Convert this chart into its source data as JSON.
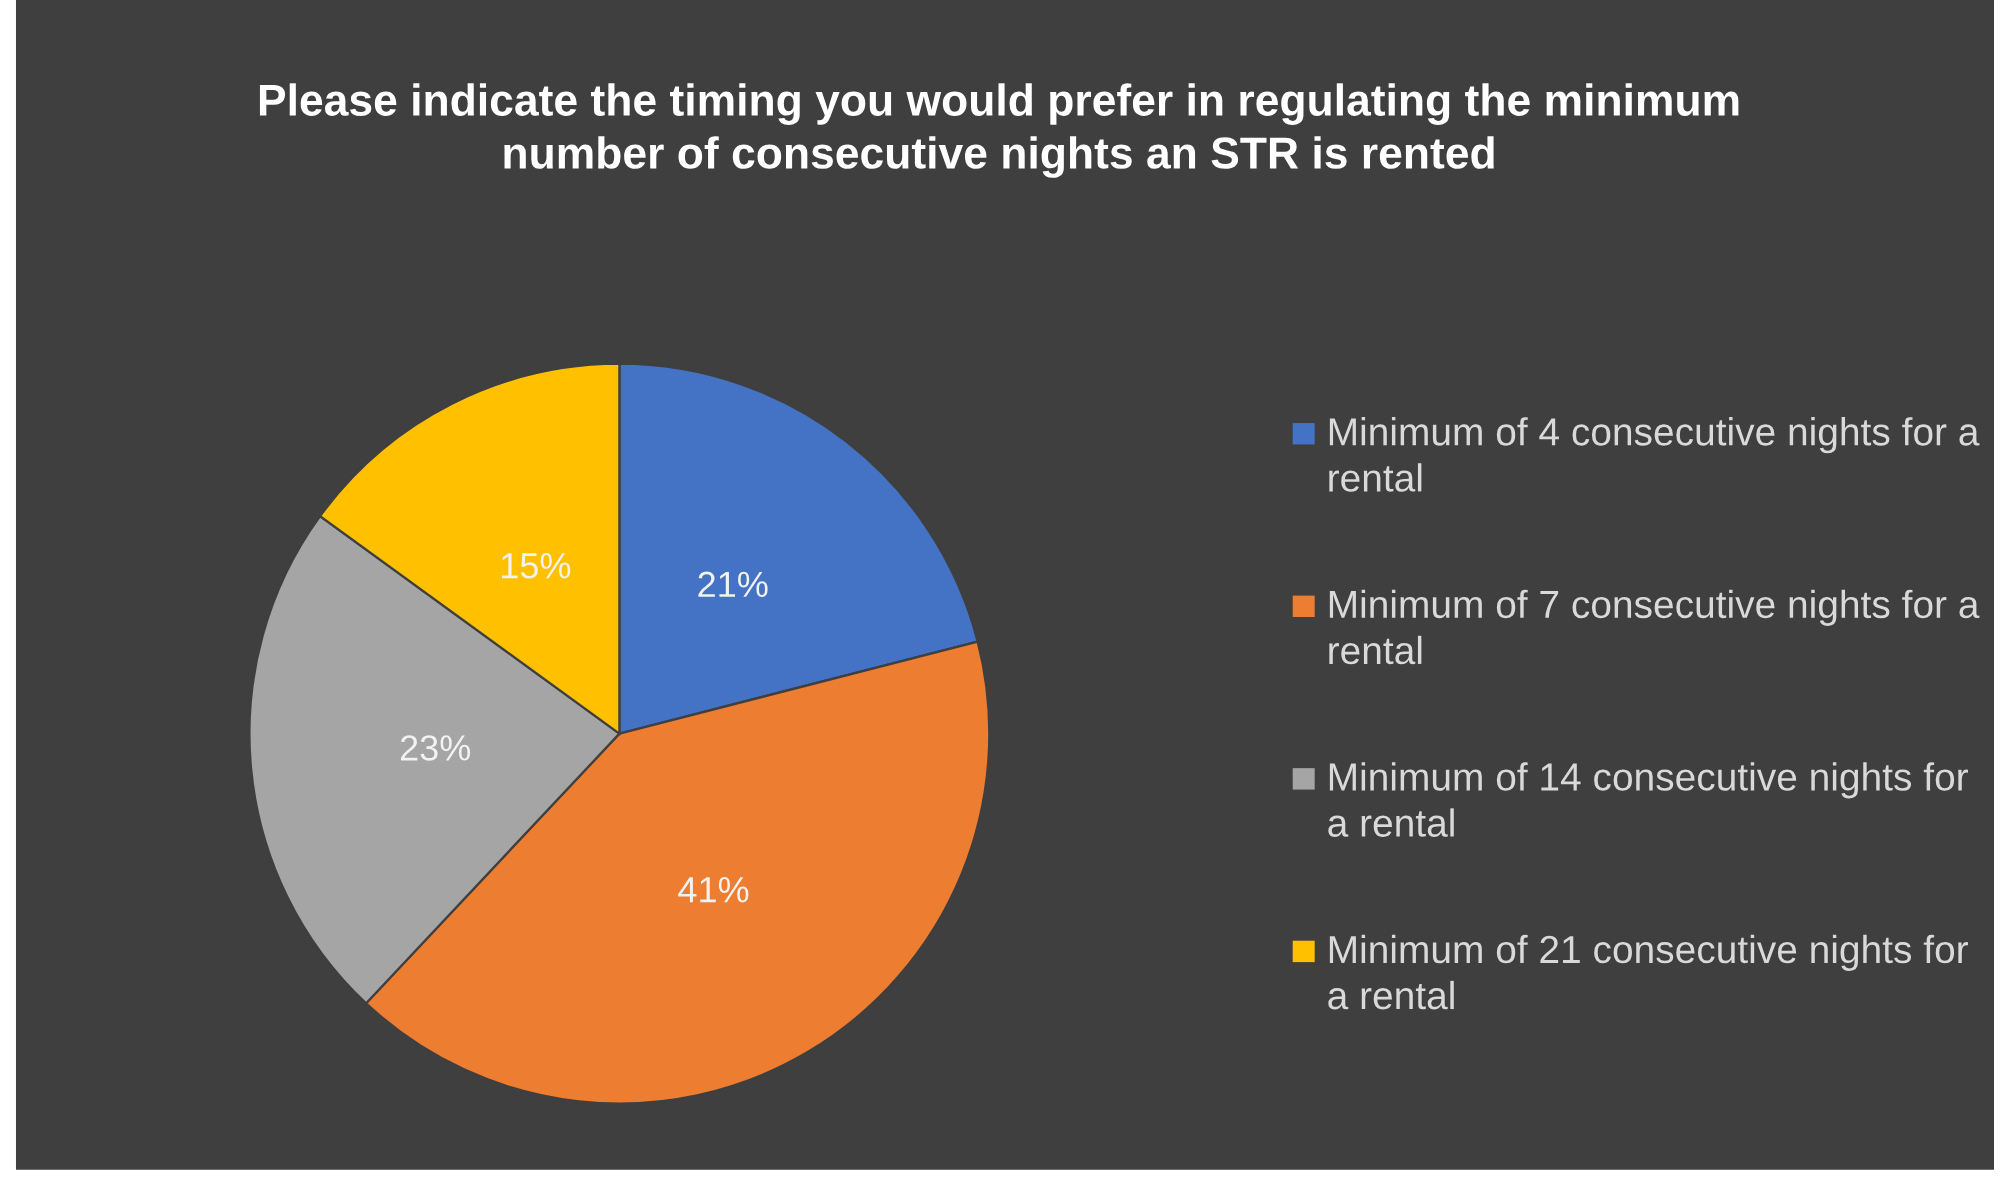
{
  "chart_data": {
    "type": "pie",
    "title": "Please indicate the timing you would prefer in regulating the minimum number of consecutive nights an STR is rented",
    "categories": [
      "Minimum of 4 consecutive nights for a rental",
      "Minimum of 7 consecutive nights for a rental",
      "Minimum of 14 consecutive nights for a rental",
      "Minimum of 21 consecutive nights for a rental"
    ],
    "values": [
      21,
      41,
      23,
      15
    ],
    "value_labels": [
      "21%",
      "41%",
      "23%",
      "15%"
    ],
    "colors": [
      "#4472c4",
      "#ed7d31",
      "#a5a5a5",
      "#ffc000"
    ],
    "legend": "right"
  }
}
